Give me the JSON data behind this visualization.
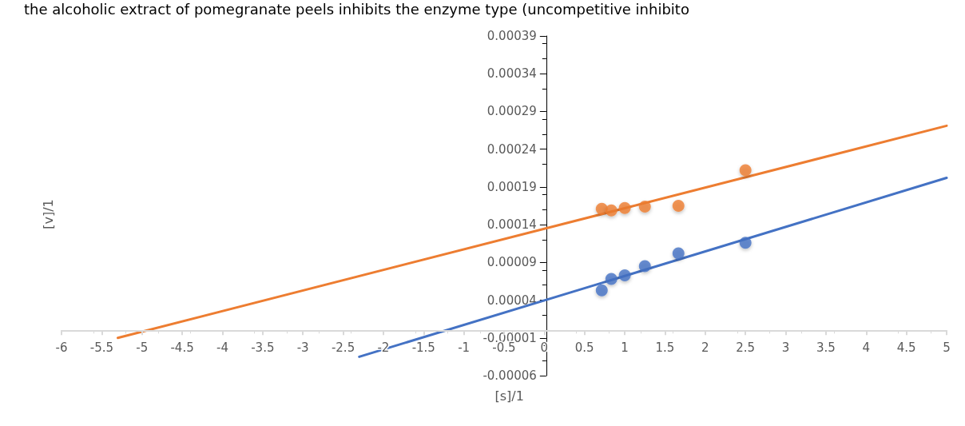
{
  "chart_data": {
    "type": "scatter",
    "title": "the alcoholic extract of pomegranate peels inhibits the enzyme type (uncompetitive inhibito",
    "xlabel": "[s]/1",
    "ylabel": "[v]/1",
    "xlim": [
      -6,
      5
    ],
    "xticks": [
      -6,
      -5.5,
      -5,
      -4.5,
      -4,
      -3.5,
      -3,
      -2.5,
      -2,
      -1.5,
      -1,
      -0.5,
      0,
      0.5,
      1,
      1.5,
      2,
      2.5,
      3,
      3.5,
      4,
      4.5,
      5
    ],
    "ylim": [
      -6e-05,
      0.00039
    ],
    "yticks": [
      {
        "value": -6e-05,
        "label": "-0.00006"
      },
      {
        "value": -1e-05,
        "label": "-0.00001"
      },
      {
        "value": 4e-05,
        "label": "0.00004"
      },
      {
        "value": 9e-05,
        "label": "0.00009"
      },
      {
        "value": 0.00014,
        "label": "0.00014"
      },
      {
        "value": 0.00019,
        "label": "0.00019"
      },
      {
        "value": 0.00024,
        "label": "0.00024"
      },
      {
        "value": 0.00029,
        "label": "0.00029"
      },
      {
        "value": 0.00034,
        "label": "0.00034"
      },
      {
        "value": 0.00039,
        "label": "0.00039"
      }
    ],
    "grid": false,
    "marker": "circle",
    "series": [
      {
        "color": "#ed7d31",
        "x": [
          0.714,
          0.833,
          1,
          1.25,
          1.667,
          2.5
        ],
        "values": [
          0.000161,
          0.000159,
          0.000162,
          0.000164,
          0.000165,
          0.000212
        ]
      },
      {
        "color": "#4472c4",
        "x": [
          0.714,
          0.833,
          1,
          1.25,
          1.667,
          2.5
        ],
        "values": [
          5.3e-05,
          6.8e-05,
          7.3e-05,
          8.5e-05,
          0.000102,
          0.000116
        ]
      },
      {
        "type": "line",
        "marker": "none",
        "color": "#ed7d31",
        "x": [
          -5.3,
          5
        ],
        "values": [
          -1e-05,
          0.000271
        ]
      },
      {
        "type": "line",
        "marker": "none",
        "color": "#4472c4",
        "x": [
          -2.3,
          5
        ],
        "values": [
          -3.5e-05,
          0.000202
        ]
      }
    ]
  }
}
